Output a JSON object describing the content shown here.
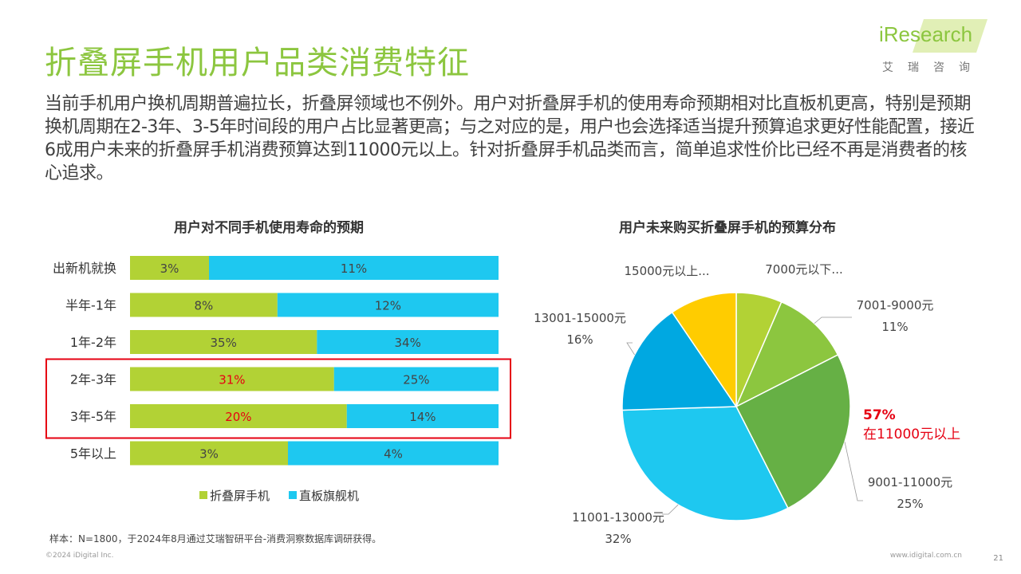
{
  "title": "折叠屏手机用户品类消费特征",
  "logo": {
    "text": "iResearch",
    "sub": "艾瑞咨询"
  },
  "body_text": "当前手机用户换机周期普遍拉长，折叠屏领域也不例外。用户对折叠屏手机的使用寿命预期相对比直板机更高，特别是预期换机周期在2-3年、3-5年时间段的用户占比显著更高；与之对应的是，用户也会选择适当提升预算追求更好性能配置，接近6成用户未来的折叠屏手机消费预算达到11000元以上。针对折叠屏手机品类而言，简单追求性价比已经不再是消费者的核心追求。",
  "colors": {
    "green": "#b2d235",
    "blue": "#1ec8f0",
    "highlight": "#e60012",
    "title_green": "#8cc63f"
  },
  "chart_data": [
    {
      "type": "bar",
      "orientation": "horizontal",
      "stacking": "100% stacked",
      "title": "用户对不同手机使用寿命的预期",
      "categories": [
        "出新机就换",
        "半年-1年",
        "1年-2年",
        "2年-3年",
        "3年-5年",
        "5年以上"
      ],
      "series": [
        {
          "name": "折叠屏手机",
          "color": "#b2d235",
          "values": [
            3,
            8,
            35,
            31,
            20,
            3
          ],
          "labels": [
            "3%",
            "8%",
            "35%",
            "31%",
            "20%",
            "3%"
          ]
        },
        {
          "name": "直板旗舰机",
          "color": "#1ec8f0",
          "values": [
            11,
            12,
            34,
            25,
            14,
            4
          ],
          "labels": [
            "11%",
            "12%",
            "34%",
            "25%",
            "14%",
            "4%"
          ]
        }
      ],
      "highlighted_categories": [
        "2年-3年",
        "3年-5年"
      ],
      "highlighted_label_color": "#e60012",
      "legend": "bottom"
    },
    {
      "type": "pie",
      "title": "用户未来购买折叠屏手机的预算分布",
      "slices": [
        {
          "label": "7000元以下...",
          "pct": "",
          "value": 6.5,
          "color": "#b2d235"
        },
        {
          "label": "7001-9000元",
          "pct": "11%",
          "value": 11,
          "color": "#8cc63f"
        },
        {
          "label": "9001-11000元",
          "pct": "25%",
          "value": 25,
          "color": "#66b045"
        },
        {
          "label": "11001-13000元",
          "pct": "32%",
          "value": 32,
          "color": "#1ec8f0"
        },
        {
          "label": "13001-15000元",
          "pct": "16%",
          "value": 16,
          "color": "#00a8e1"
        },
        {
          "label": "15000元以上...",
          "pct": "",
          "value": 9.5,
          "color": "#ffcc00"
        }
      ],
      "callout": {
        "value": "57%",
        "text": "在11000元以上"
      }
    }
  ],
  "note": "样本：N=1800，于2024年8月通过艾瑞智研平台-消费洞察数据库调研获得。",
  "copyright": "©2024 iDigital Inc.",
  "website": "www.idigital.com.cn",
  "page_number": "21"
}
